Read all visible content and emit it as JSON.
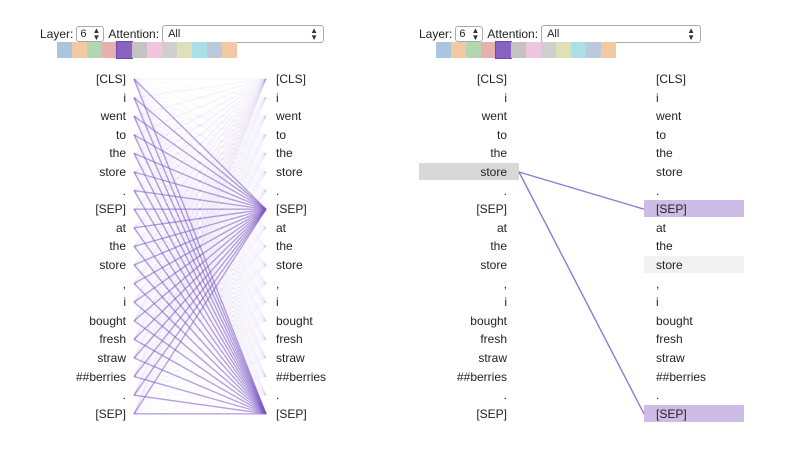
{
  "controls": {
    "layer_label": "Layer:",
    "layer_value": "6",
    "attention_label": "Attention:",
    "attention_value": "All"
  },
  "head_colors": [
    "#a9c5df",
    "#f1c9a2",
    "#b1d6b0",
    "#e6b0b0",
    "#8a63c2",
    "#c3c3c3",
    "#f1c4df",
    "#cfcfcf",
    "#dfe0b8",
    "#a9dfe6",
    "#bcc9dd",
    "#f1c9a2"
  ],
  "selected_head_index": 4,
  "attention_color": "#7b55c4",
  "tokens": [
    "[CLS]",
    "i",
    "went",
    "to",
    "the",
    "store",
    ".",
    "[SEP]",
    "at",
    "the",
    "store",
    ",",
    "i",
    "bought",
    "fresh",
    "straw",
    "##berries",
    ".",
    "[SEP]"
  ],
  "right_panel": {
    "selected_source_index": 5,
    "targets": [
      7,
      18
    ],
    "faint_target": 10
  }
}
